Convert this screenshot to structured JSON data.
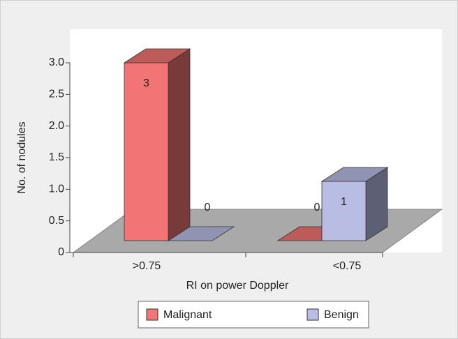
{
  "chart_data": {
    "type": "bar3d",
    "categories": [
      ">0.75",
      "<0.75"
    ],
    "series": [
      {
        "name": "Malignant",
        "color": "#f27474",
        "values": [
          3,
          0
        ]
      },
      {
        "name": "Benign",
        "color": "#b9bde3",
        "values": [
          0,
          1
        ]
      }
    ],
    "ylim": [
      0,
      3
    ],
    "yticks": [
      0,
      0.5,
      {
        "value": 1,
        "label": "1.0"
      },
      1.5,
      {
        "value": 2,
        "label": "2.0"
      },
      2.5,
      {
        "value": 3,
        "label": "3.0"
      }
    ],
    "y_label": "No. of nodules",
    "x_label": "RI on power Doppler",
    "legend": "bottom"
  }
}
